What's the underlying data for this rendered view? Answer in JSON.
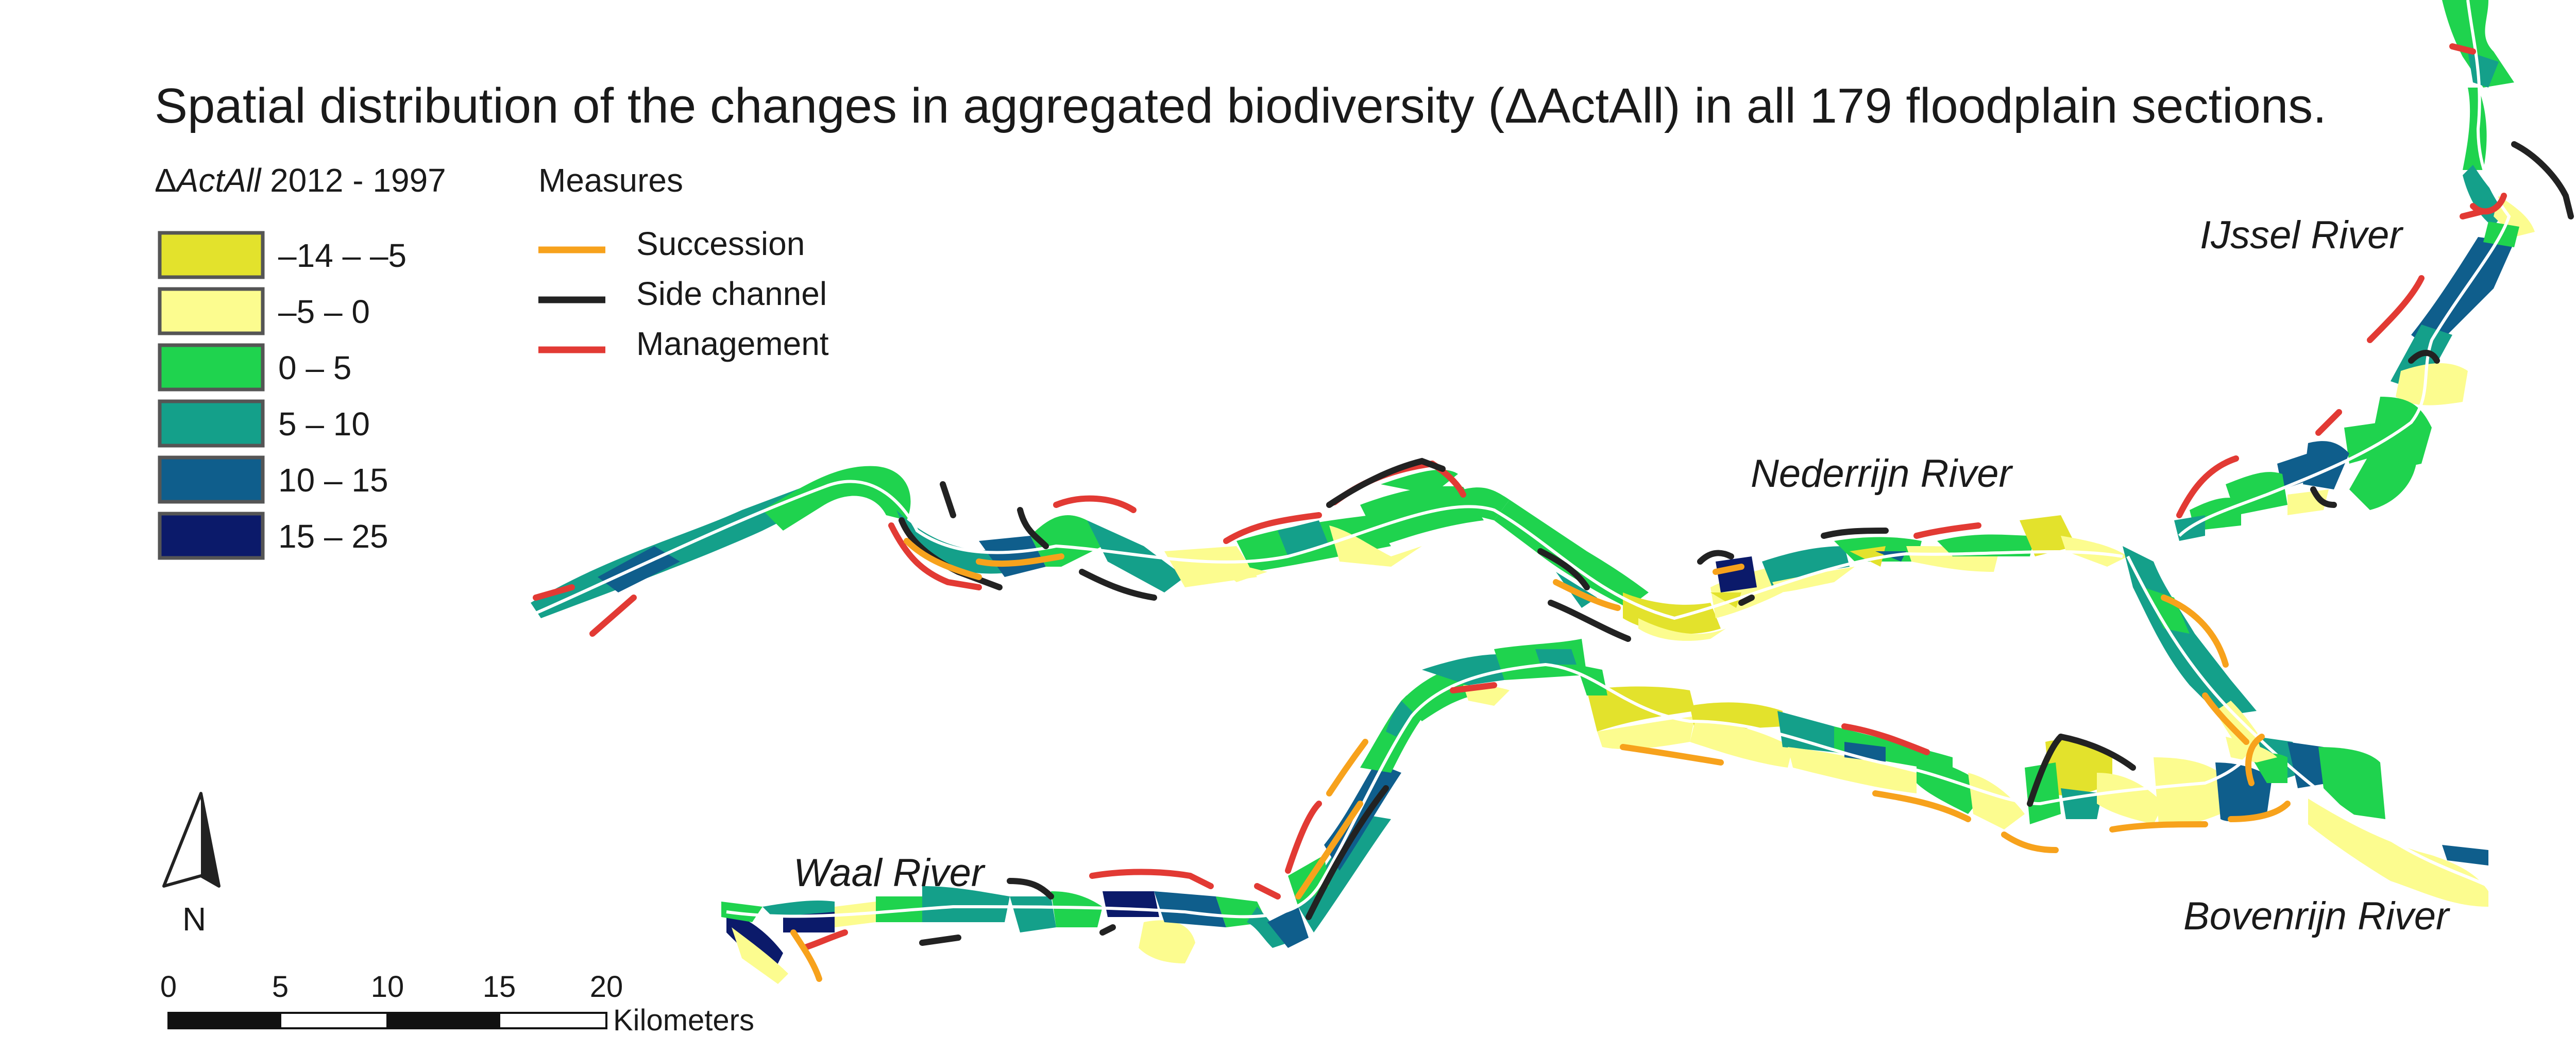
{
  "title": "Spatial distribution of the changes in aggregated biodiversity (ΔActAll) in all 179 floodplain sections.",
  "legend_change": {
    "heading_symbol": "Δ",
    "heading_var": "ActAll",
    "heading_years": " 2012 - 1997",
    "classes": [
      {
        "label": "–14 – –5",
        "color": "#e3e22c"
      },
      {
        "label": "–5 – 0",
        "color": "#fcfc8f"
      },
      {
        "label": "0 – 5",
        "color": "#1fd34e"
      },
      {
        "label": "5 – 10",
        "color": "#14a08a"
      },
      {
        "label": "10 – 15",
        "color": "#0f5e8c"
      },
      {
        "label": "15 – 25",
        "color": "#0b1a6a"
      }
    ]
  },
  "legend_measures": {
    "heading": "Measures",
    "items": [
      {
        "label": "Succession",
        "color": "#f7a21c"
      },
      {
        "label": "Side channel",
        "color": "#222222"
      },
      {
        "label": "Management",
        "color": "#e23a34"
      }
    ]
  },
  "rivers": {
    "ijssel": "IJssel River",
    "nederrijn": "Nederrijn River",
    "waal": "Waal River",
    "bovenrijn": "Bovenrijn River"
  },
  "north_arrow": {
    "label": "N",
    "icon": "north-arrow-icon"
  },
  "scale_bar": {
    "ticks": [
      "0",
      "5",
      "10",
      "15",
      "20"
    ],
    "unit": "Kilometers"
  }
}
